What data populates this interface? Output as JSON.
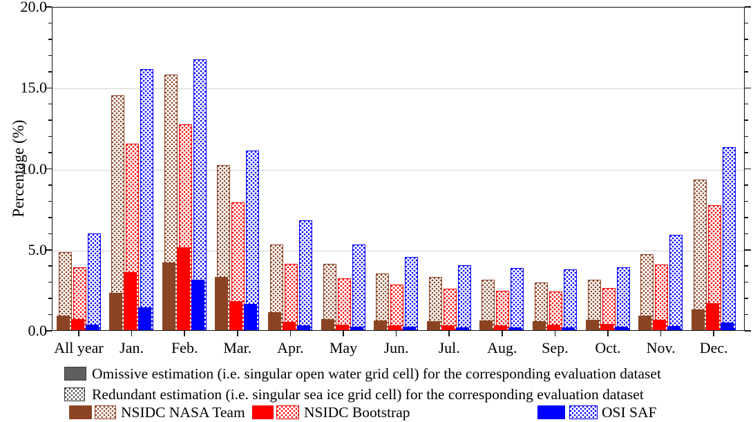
{
  "chart_data": {
    "type": "bar",
    "title": "",
    "xlabel": "",
    "ylabel": "Percentage (%)",
    "ylim": [
      0,
      20
    ],
    "ytick_values": [
      0,
      5,
      10,
      15,
      20
    ],
    "ytick_labels": [
      "0.0",
      "5.0",
      "10.0",
      "15.0",
      "20.0"
    ],
    "minor_tick_step": 1,
    "grid": "horizontal gridlines at 5, 10, 15",
    "legend_position": "below plot",
    "categories": [
      "All year",
      "Jan.",
      "Feb.",
      "Mar.",
      "Apr.",
      "May",
      "Jun.",
      "Jul.",
      "Aug.",
      "Sep.",
      "Oct.",
      "Nov.",
      "Dec."
    ],
    "series": [
      {
        "name": "NSIDC NASA Team - omissive",
        "dataset": "NSIDC NASA Team",
        "estimation": "omissive",
        "style": "solid",
        "color": "#8B4423",
        "values": [
          0.9,
          2.3,
          4.2,
          3.3,
          1.1,
          0.7,
          0.6,
          0.55,
          0.6,
          0.55,
          0.65,
          0.9,
          1.3
        ]
      },
      {
        "name": "NSIDC NASA Team - redundant",
        "dataset": "NSIDC NASA Team",
        "estimation": "redundant",
        "style": "dotted",
        "color": "#8B4423",
        "values": [
          4.8,
          14.5,
          15.8,
          10.2,
          5.3,
          4.1,
          3.5,
          3.3,
          3.1,
          2.95,
          3.1,
          4.7,
          9.3
        ]
      },
      {
        "name": "NSIDC Bootstrap - omissive",
        "dataset": "NSIDC Bootstrap",
        "estimation": "omissive",
        "style": "solid",
        "color": "#FF0000",
        "values": [
          0.7,
          3.6,
          5.1,
          1.8,
          0.5,
          0.35,
          0.3,
          0.3,
          0.3,
          0.35,
          0.4,
          0.65,
          1.65
        ]
      },
      {
        "name": "NSIDC Bootstrap - redundant",
        "dataset": "NSIDC Bootstrap",
        "estimation": "redundant",
        "style": "dotted",
        "color": "#FF0000",
        "values": [
          3.9,
          11.5,
          12.7,
          7.9,
          4.1,
          3.2,
          2.8,
          2.55,
          2.45,
          2.4,
          2.6,
          4.05,
          7.7
        ]
      },
      {
        "name": "OSI SAF - omissive",
        "dataset": "OSI SAF",
        "estimation": "omissive",
        "style": "solid",
        "color": "#0000FF",
        "values": [
          0.35,
          1.4,
          3.1,
          1.6,
          0.3,
          0.2,
          0.2,
          0.15,
          0.15,
          0.15,
          0.2,
          0.25,
          0.45
        ]
      },
      {
        "name": "OSI SAF - redundant",
        "dataset": "OSI SAF",
        "estimation": "redundant",
        "style": "dotted",
        "color": "#0000FF",
        "values": [
          5.95,
          16.1,
          16.7,
          11.1,
          6.8,
          5.3,
          4.5,
          4.0,
          3.85,
          3.75,
          3.9,
          5.9,
          11.3
        ]
      }
    ]
  },
  "axis": {
    "ylabel": "Percentage (%)"
  },
  "legend": {
    "omissive": {
      "label": "Omissive estimation (i.e. singular open water grid cell) for the corresponding evaluation dataset",
      "swatch_color": "#5f5f5f",
      "swatch_border": "#3a3a3a"
    },
    "redundant": {
      "label": "Redundant estimation (i.e. singular sea ice grid cell) for the corresponding evaluation dataset",
      "dot_color": "#4a4a4a",
      "swatch_border": "#333333"
    },
    "datasets": [
      {
        "label": "NSIDC NASA Team",
        "color": "#8B4423"
      },
      {
        "label": "NSIDC Bootstrap",
        "color": "#FF0000"
      },
      {
        "label": "OSI SAF",
        "color": "#0000FF"
      }
    ]
  },
  "colors": {
    "gridline": "#d2d2d2",
    "axis": "#111111",
    "background": "#ffffff"
  }
}
